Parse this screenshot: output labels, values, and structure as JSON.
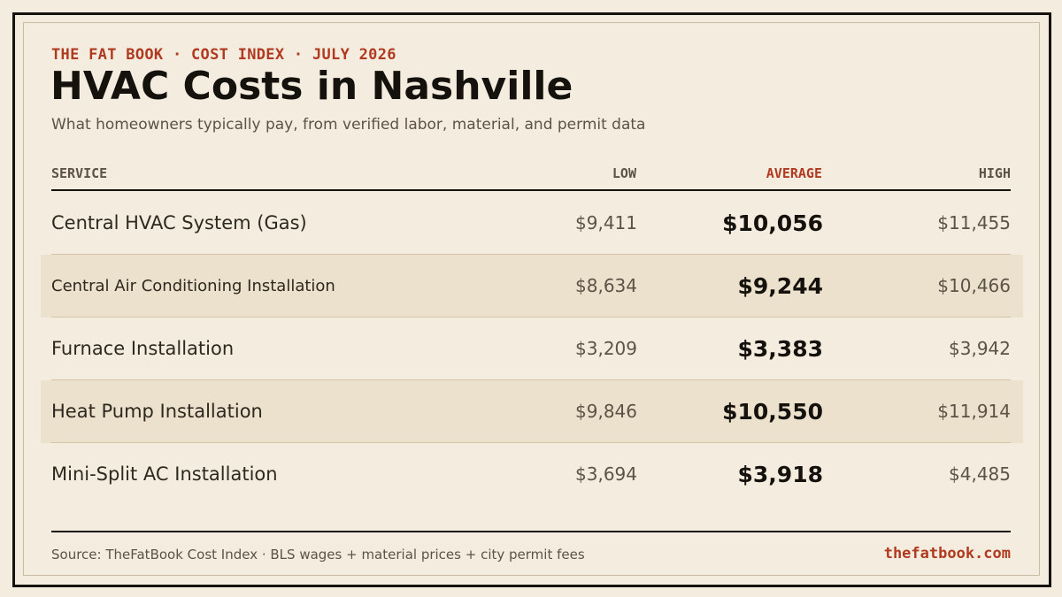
{
  "header": {
    "eyebrow": "THE FAT BOOK · COST INDEX · JULY 2026",
    "title": "HVAC Costs in Nashville",
    "subtitle": "What homeowners typically pay, from verified labor, material, and permit data"
  },
  "table": {
    "columns": {
      "service": "SERVICE",
      "low": "LOW",
      "average": "AVERAGE",
      "high": "HIGH"
    },
    "rows": [
      {
        "service": "Central HVAC System (Gas)",
        "low": "$9,411",
        "average": "$10,056",
        "high": "$11,455"
      },
      {
        "service": "Central Air Conditioning Installation",
        "low": "$8,634",
        "average": "$9,244",
        "high": "$10,466"
      },
      {
        "service": "Furnace Installation",
        "low": "$3,209",
        "average": "$3,383",
        "high": "$3,942"
      },
      {
        "service": "Heat Pump Installation",
        "low": "$9,846",
        "average": "$10,550",
        "high": "$11,914"
      },
      {
        "service": "Mini-Split AC Installation",
        "low": "$3,694",
        "average": "$3,918",
        "high": "$4,485"
      }
    ]
  },
  "footer": {
    "source": "Source: TheFatBook Cost Index · BLS wages + material prices + city permit fees",
    "site": "thefatbook.com"
  },
  "colors": {
    "background": "#f4ecdf",
    "accent": "#b03a1f",
    "ink": "#15110c",
    "row_shade": "#ece1cd"
  }
}
